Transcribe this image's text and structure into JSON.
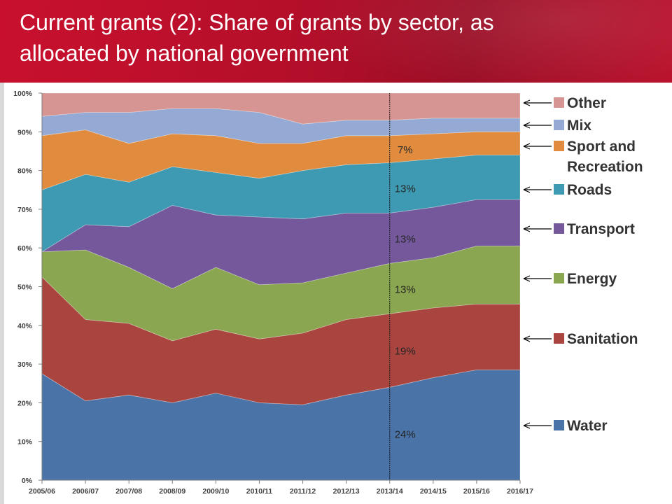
{
  "slide": {
    "title_line1": "Current grants (2): Share of grants by sector, as",
    "title_line2": "allocated by national government"
  },
  "chart_data": {
    "type": "area",
    "stacked": true,
    "x": [
      "2005/06",
      "2006/07",
      "2007/08",
      "2008/09",
      "2009/10",
      "2010/11",
      "2011/12",
      "2012/13",
      "2013/14",
      "2014/15",
      "2015/16",
      "2016/17"
    ],
    "ylim": [
      0,
      100
    ],
    "yticks": [
      "0%",
      "10%",
      "20%",
      "30%",
      "40%",
      "50%",
      "60%",
      "70%",
      "80%",
      "90%",
      "100%"
    ],
    "grid": false,
    "legend_position": "right",
    "series": [
      {
        "name": "Water",
        "color": "#4a73a8",
        "values": [
          27.5,
          20.5,
          22.0,
          20.0,
          22.5,
          20.0,
          19.5,
          22.0,
          24.0,
          26.5,
          28.5,
          28.5
        ]
      },
      {
        "name": "Sanitation",
        "color": "#a9443f",
        "values": [
          25.0,
          21.0,
          18.5,
          16.0,
          16.5,
          16.5,
          18.5,
          19.5,
          19.0,
          18.0,
          17.0,
          17.0
        ]
      },
      {
        "name": "Energy",
        "color": "#8ba650",
        "values": [
          6.5,
          18.0,
          14.5,
          13.5,
          16.0,
          14.0,
          13.0,
          12.0,
          13.0,
          13.0,
          15.0,
          15.0
        ]
      },
      {
        "name": "Transport",
        "color": "#74589b",
        "values": [
          0.0,
          6.5,
          10.5,
          21.5,
          13.5,
          17.5,
          16.5,
          15.5,
          13.0,
          13.0,
          12.0,
          12.0
        ]
      },
      {
        "name": "Roads",
        "color": "#3e9ab2",
        "values": [
          16.0,
          13.0,
          11.5,
          10.0,
          11.0,
          10.0,
          12.5,
          12.5,
          13.0,
          12.5,
          11.5,
          11.5
        ]
      },
      {
        "name": "Sport and Recreation",
        "color": "#e08b3d",
        "values": [
          14.0,
          11.5,
          10.0,
          8.5,
          9.5,
          9.0,
          7.0,
          7.5,
          7.0,
          6.5,
          6.0,
          6.0
        ]
      },
      {
        "name": "Mix",
        "color": "#94aad4",
        "values": [
          5.0,
          4.5,
          8.0,
          6.5,
          7.0,
          8.0,
          5.0,
          4.0,
          4.0,
          4.0,
          3.5,
          3.5
        ]
      },
      {
        "name": "Other",
        "color": "#d69592",
        "values": [
          6.0,
          5.0,
          5.0,
          4.0,
          4.0,
          5.0,
          8.0,
          7.0,
          7.0,
          6.5,
          6.5,
          6.5
        ]
      }
    ],
    "marker": {
      "x": "2013/14",
      "labels": [
        {
          "series": "Water",
          "text": "24%"
        },
        {
          "series": "Sanitation",
          "text": "19%"
        },
        {
          "series": "Energy",
          "text": "13%"
        },
        {
          "series": "Transport",
          "text": "13%"
        },
        {
          "series": "Roads",
          "text": "13%"
        },
        {
          "series": "Sport and Recreation",
          "text": "7%"
        }
      ]
    },
    "legend": [
      {
        "label_lines": [
          "Other"
        ],
        "color": "#d69592"
      },
      {
        "label_lines": [
          "Mix"
        ],
        "color": "#94aad4"
      },
      {
        "label_lines": [
          "Sport and",
          "Recreation"
        ],
        "color": "#e08b3d"
      },
      {
        "label_lines": [
          "Roads"
        ],
        "color": "#3e9ab2"
      },
      {
        "label_lines": [
          "Transport"
        ],
        "color": "#74589b"
      },
      {
        "label_lines": [
          "Energy"
        ],
        "color": "#8ba650"
      },
      {
        "label_lines": [
          "Sanitation"
        ],
        "color": "#a9443f"
      },
      {
        "label_lines": [
          "Water"
        ],
        "color": "#4a73a8"
      }
    ]
  }
}
